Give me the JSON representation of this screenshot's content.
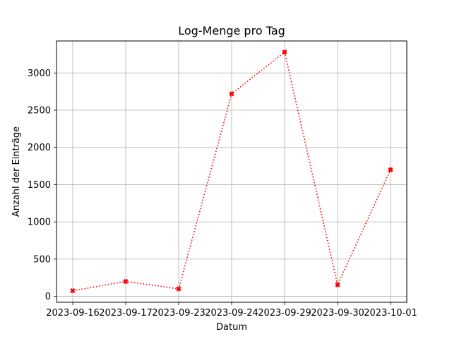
{
  "chart_data": {
    "type": "line",
    "title": "Log-Menge pro Tag",
    "xlabel": "Datum",
    "ylabel": "Anzahl der Einträge",
    "categories": [
      "2023-09-16",
      "2023-09-17",
      "2023-09-23",
      "2023-09-24",
      "2023-09-29",
      "2023-09-30",
      "2023-10-01"
    ],
    "series": [
      {
        "values": [
          75,
          200,
          100,
          2720,
          3280,
          155,
          1700
        ]
      }
    ],
    "ylim": [
      -80,
      3430
    ],
    "yticks": [
      0,
      500,
      1000,
      1500,
      2000,
      2500,
      3000
    ],
    "ytick_labels": [
      "0",
      "500",
      "1000",
      "1500",
      "2000",
      "2500",
      "3000"
    ],
    "grid": true,
    "line_style": "dotted",
    "marker": "X",
    "color": "#ff0000"
  }
}
